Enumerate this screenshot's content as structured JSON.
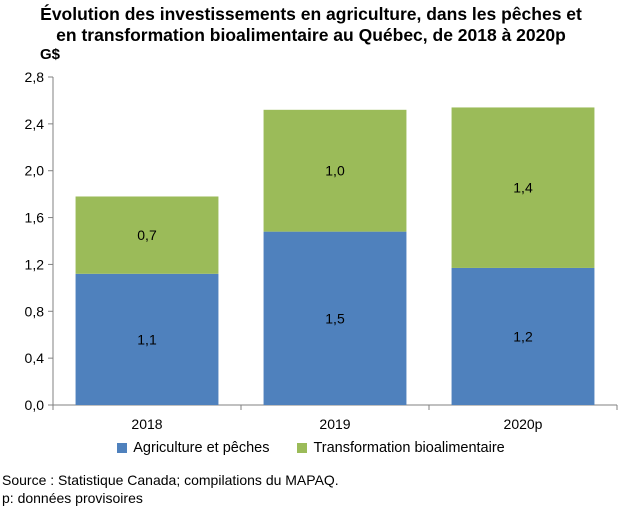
{
  "title_lines": [
    "Évolution des investissements en agriculture, dans les pêches et",
    "en transformation bioalimentaire au Québec, de 2018 à 2020p"
  ],
  "unit_label": "G$",
  "legend": [
    {
      "name": "Agriculture et pêches",
      "color": "#4f81bd"
    },
    {
      "name": "Transformation bioalimentaire",
      "color": "#9bbb59"
    }
  ],
  "notes": [
    "Source : Statistique Canada; compilations du MAPAQ.",
    "p: données provisoires"
  ],
  "chart_data": {
    "type": "bar",
    "stacked": true,
    "categories": [
      "2018",
      "2019",
      "2020p"
    ],
    "series": [
      {
        "name": "Agriculture et pêches",
        "values": [
          1.12,
          1.48,
          1.17
        ],
        "labels": [
          "1,1",
          "1,5",
          "1,2"
        ],
        "color": "#4f81bd"
      },
      {
        "name": "Transformation bioalimentaire",
        "values": [
          0.66,
          1.04,
          1.37
        ],
        "labels": [
          "0,7",
          "1,0",
          "1,4"
        ],
        "color": "#9bbb59"
      }
    ],
    "ylim": [
      0,
      2.8
    ],
    "yticks": [
      0,
      0.4,
      0.8,
      1.2,
      1.6,
      2.0,
      2.4,
      2.8
    ],
    "ytick_labels": [
      "0,0",
      "0,4",
      "0,8",
      "1,2",
      "1,6",
      "2,0",
      "2,4",
      "2,8"
    ],
    "ylabel": "G$",
    "grid": false,
    "legend_position": "bottom"
  }
}
